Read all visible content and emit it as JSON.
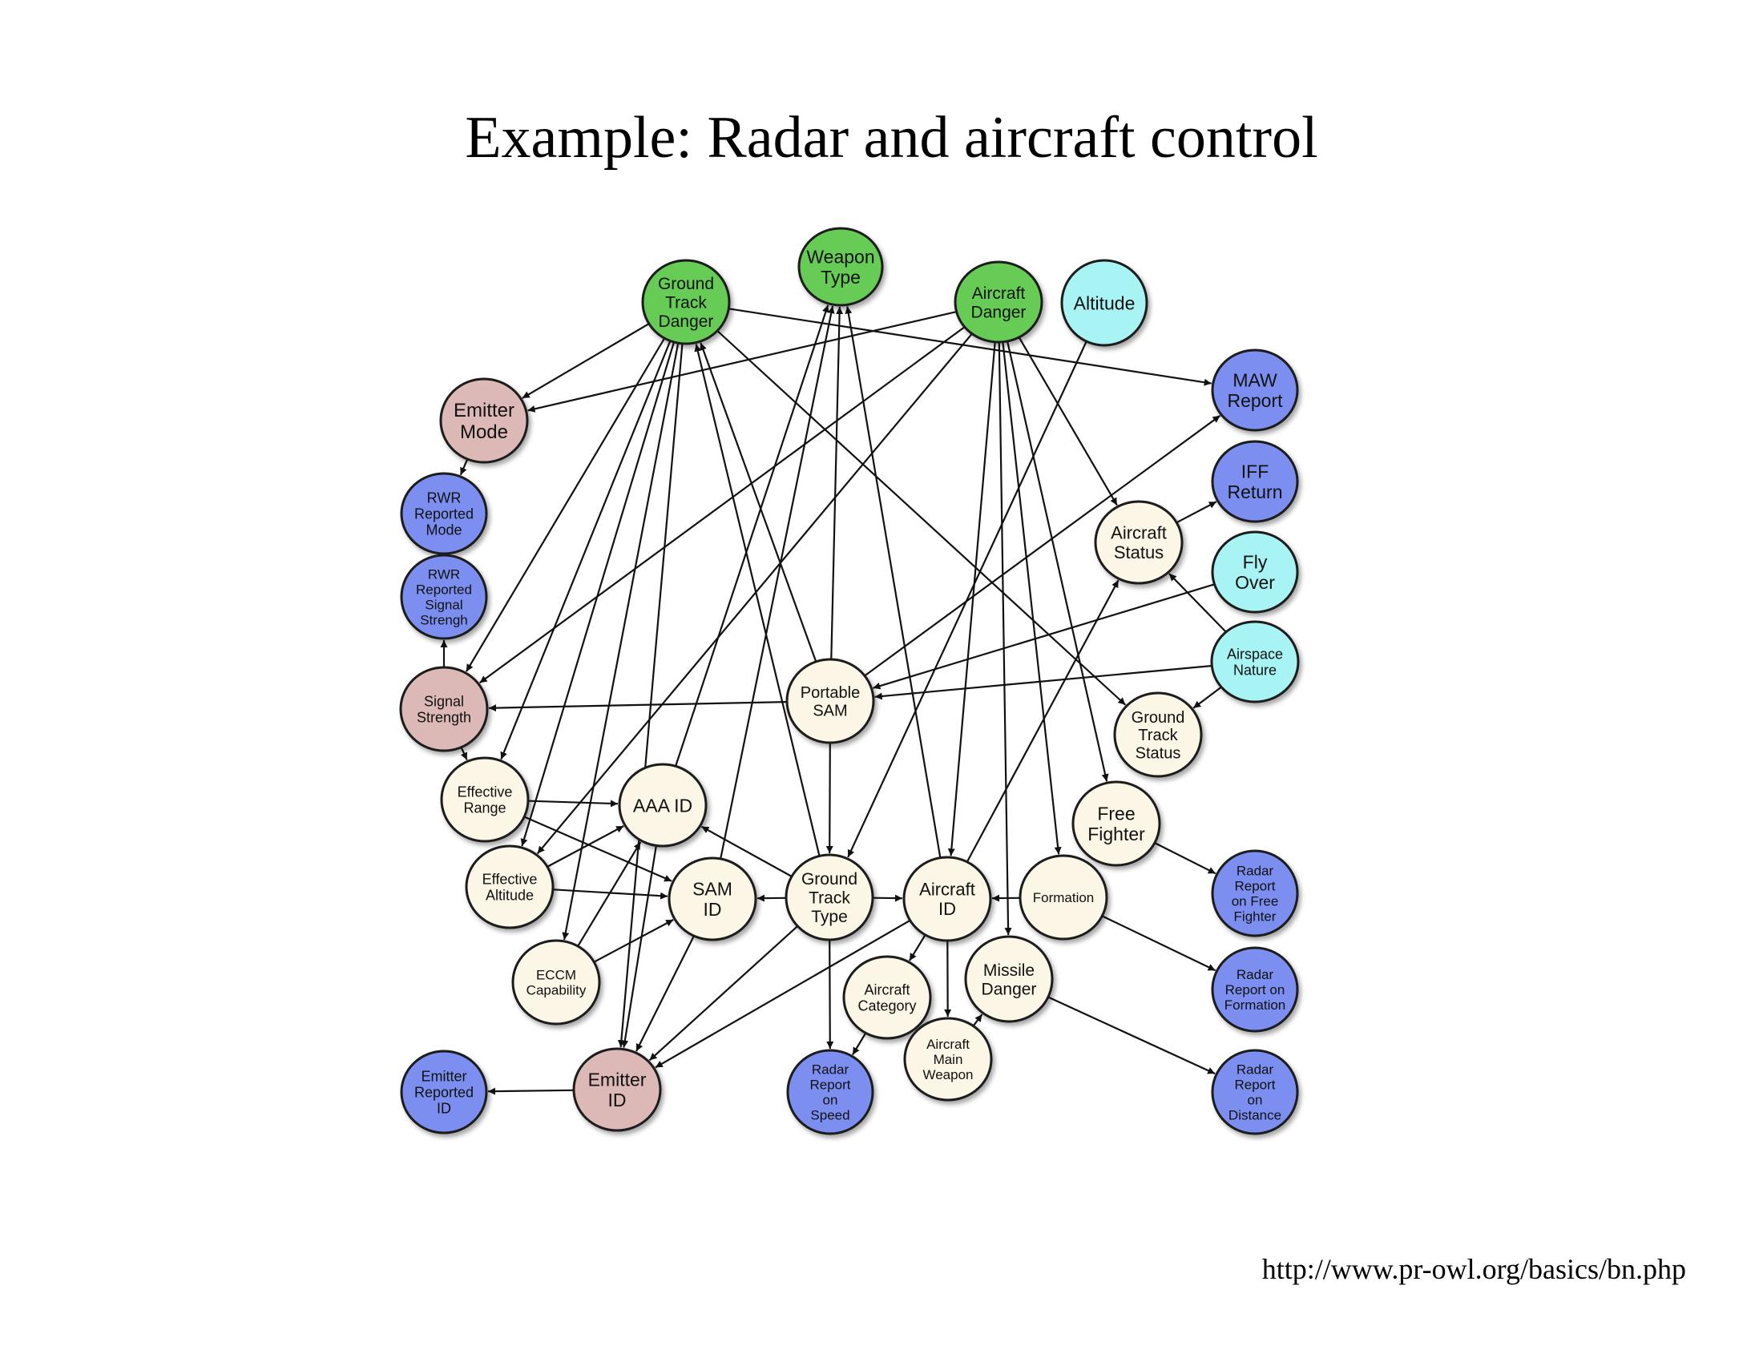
{
  "title": "Example: Radar and aircraft control",
  "source_url": "http://www.pr-owl.org/basics/bn.php",
  "category_colors": {
    "green": "#66cc55",
    "cyan": "#a8f4f4",
    "pink": "#dcb9b6",
    "blue": "#7c8ff0",
    "cream": "#fbf6e6"
  },
  "nodes": [
    {
      "id": "weapon-type",
      "lines": [
        "Weapon",
        "Type"
      ],
      "category": "green"
    },
    {
      "id": "ground-track-danger",
      "lines": [
        "Ground",
        "Track",
        "Danger"
      ],
      "category": "green"
    },
    {
      "id": "aircraft-danger",
      "lines": [
        "Aircraft",
        "Danger"
      ],
      "category": "green"
    },
    {
      "id": "altitude",
      "lines": [
        "Altitude"
      ],
      "category": "cyan"
    },
    {
      "id": "maw-report",
      "lines": [
        "MAW",
        "Report"
      ],
      "category": "blue"
    },
    {
      "id": "emitter-mode",
      "lines": [
        "Emitter",
        "Mode"
      ],
      "category": "pink"
    },
    {
      "id": "iff-return",
      "lines": [
        "IFF",
        "Return"
      ],
      "category": "blue"
    },
    {
      "id": "rwr-reported-mode",
      "lines": [
        "RWR",
        "Reported",
        "Mode"
      ],
      "category": "blue"
    },
    {
      "id": "aircraft-status",
      "lines": [
        "Aircraft",
        "Status"
      ],
      "category": "cream"
    },
    {
      "id": "fly-over",
      "lines": [
        "Fly",
        "Over"
      ],
      "category": "cyan"
    },
    {
      "id": "rwr-reported-signal-strength",
      "lines": [
        "RWR",
        "Reported",
        "Signal",
        "Strengh"
      ],
      "category": "blue"
    },
    {
      "id": "airspace-nature",
      "lines": [
        "Airspace",
        "Nature"
      ],
      "category": "cyan"
    },
    {
      "id": "portable-sam",
      "lines": [
        "Portable",
        "SAM"
      ],
      "category": "cream"
    },
    {
      "id": "signal-strength",
      "lines": [
        "Signal",
        "Strength"
      ],
      "category": "pink"
    },
    {
      "id": "ground-track-status",
      "lines": [
        "Ground",
        "Track",
        "Status"
      ],
      "category": "cream"
    },
    {
      "id": "effective-range",
      "lines": [
        "Effective",
        "Range"
      ],
      "category": "cream"
    },
    {
      "id": "aaa-id",
      "lines": [
        "AAA ID"
      ],
      "category": "cream"
    },
    {
      "id": "free-fighter",
      "lines": [
        "Free",
        "Fighter"
      ],
      "category": "cream"
    },
    {
      "id": "radar-report-on-free-fighter",
      "lines": [
        "Radar",
        "Report",
        "on Free",
        "Fighter"
      ],
      "category": "blue"
    },
    {
      "id": "effective-altitude",
      "lines": [
        "Effective",
        "Altitude"
      ],
      "category": "cream"
    },
    {
      "id": "sam-id",
      "lines": [
        "SAM",
        "ID"
      ],
      "category": "cream"
    },
    {
      "id": "ground-track-type",
      "lines": [
        "Ground",
        "Track",
        "Type"
      ],
      "category": "cream"
    },
    {
      "id": "aircraft-id",
      "lines": [
        "Aircraft",
        "ID"
      ],
      "category": "cream"
    },
    {
      "id": "formation",
      "lines": [
        "Formation"
      ],
      "category": "cream"
    },
    {
      "id": "eccm-capability",
      "lines": [
        "ECCM",
        "Capability"
      ],
      "category": "cream"
    },
    {
      "id": "aircraft-category",
      "lines": [
        "Aircraft",
        "Category"
      ],
      "category": "cream"
    },
    {
      "id": "missile-danger",
      "lines": [
        "Missile",
        "Danger"
      ],
      "category": "cream"
    },
    {
      "id": "radar-report-on-formation",
      "lines": [
        "Radar",
        "Report on",
        "Formation"
      ],
      "category": "blue"
    },
    {
      "id": "aircraft-main-weapon",
      "lines": [
        "Aircraft",
        "Main",
        "Weapon"
      ],
      "category": "cream"
    },
    {
      "id": "emitter-reported-id",
      "lines": [
        "Emitter",
        "Reported",
        "ID"
      ],
      "category": "blue"
    },
    {
      "id": "emitter-id",
      "lines": [
        "Emitter",
        "ID"
      ],
      "category": "pink"
    },
    {
      "id": "radar-report-on-speed",
      "lines": [
        "Radar",
        "Report",
        "on",
        "Speed"
      ],
      "category": "blue"
    },
    {
      "id": "radar-report-on-distance",
      "lines": [
        "Radar",
        "Report",
        "on",
        "Distance"
      ],
      "category": "blue"
    }
  ],
  "edges": [
    [
      "ground-track-danger",
      "emitter-mode"
    ],
    [
      "ground-track-danger",
      "maw-report"
    ],
    [
      "ground-track-danger",
      "signal-strength"
    ],
    [
      "ground-track-danger",
      "effective-range"
    ],
    [
      "ground-track-danger",
      "effective-altitude"
    ],
    [
      "ground-track-danger",
      "eccm-capability"
    ],
    [
      "ground-track-danger",
      "emitter-id"
    ],
    [
      "ground-track-danger",
      "ground-track-status"
    ],
    [
      "aircraft-danger",
      "emitter-mode"
    ],
    [
      "aircraft-danger",
      "signal-strength"
    ],
    [
      "aircraft-danger",
      "aircraft-status"
    ],
    [
      "aircraft-danger",
      "aircraft-id"
    ],
    [
      "aircraft-danger",
      "missile-danger"
    ],
    [
      "aircraft-danger",
      "formation"
    ],
    [
      "aircraft-danger",
      "free-fighter"
    ],
    [
      "aircraft-danger",
      "effective-altitude"
    ],
    [
      "altitude",
      "ground-track-type"
    ],
    [
      "emitter-mode",
      "rwr-reported-mode"
    ],
    [
      "signal-strength",
      "rwr-reported-signal-strength"
    ],
    [
      "signal-strength",
      "effective-range"
    ],
    [
      "aircraft-status",
      "iff-return"
    ],
    [
      "airspace-nature",
      "aircraft-status"
    ],
    [
      "airspace-nature",
      "ground-track-status"
    ],
    [
      "airspace-nature",
      "portable-sam"
    ],
    [
      "fly-over",
      "portable-sam"
    ],
    [
      "portable-sam",
      "signal-strength"
    ],
    [
      "portable-sam",
      "maw-report"
    ],
    [
      "portable-sam",
      "weapon-type"
    ],
    [
      "portable-sam",
      "ground-track-danger"
    ],
    [
      "portable-sam",
      "ground-track-type"
    ],
    [
      "aaa-id",
      "weapon-type"
    ],
    [
      "sam-id",
      "weapon-type"
    ],
    [
      "ground-track-type",
      "ground-track-danger"
    ],
    [
      "ground-track-type",
      "aaa-id"
    ],
    [
      "ground-track-type",
      "sam-id"
    ],
    [
      "ground-track-type",
      "aircraft-id"
    ],
    [
      "ground-track-type",
      "emitter-id"
    ],
    [
      "ground-track-type",
      "radar-report-on-speed"
    ],
    [
      "aircraft-id",
      "weapon-type"
    ],
    [
      "aircraft-id",
      "aircraft-status"
    ],
    [
      "aircraft-id",
      "aircraft-category"
    ],
    [
      "aircraft-id",
      "aircraft-main-weapon"
    ],
    [
      "aircraft-id",
      "emitter-id"
    ],
    [
      "formation",
      "aircraft-id"
    ],
    [
      "formation",
      "radar-report-on-formation"
    ],
    [
      "free-fighter",
      "radar-report-on-free-fighter"
    ],
    [
      "missile-danger",
      "radar-report-on-distance"
    ],
    [
      "aircraft-main-weapon",
      "missile-danger"
    ],
    [
      "aircraft-category",
      "radar-report-on-speed"
    ],
    [
      "effective-range",
      "aaa-id"
    ],
    [
      "effective-range",
      "sam-id"
    ],
    [
      "effective-altitude",
      "aaa-id"
    ],
    [
      "effective-altitude",
      "sam-id"
    ],
    [
      "eccm-capability",
      "aaa-id"
    ],
    [
      "eccm-capability",
      "sam-id"
    ],
    [
      "aaa-id",
      "emitter-id"
    ],
    [
      "sam-id",
      "emitter-id"
    ],
    [
      "emitter-id",
      "emitter-reported-id"
    ]
  ]
}
